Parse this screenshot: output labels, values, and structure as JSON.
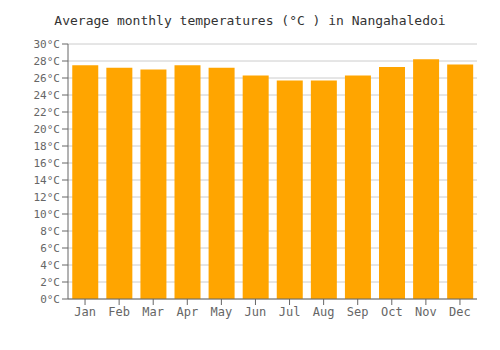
{
  "chart_data": {
    "type": "bar",
    "title": "Average monthly temperatures (°C ) in Nangahaledoi",
    "categories": [
      "Jan",
      "Feb",
      "Mar",
      "Apr",
      "May",
      "Jun",
      "Jul",
      "Aug",
      "Sep",
      "Oct",
      "Nov",
      "Dec"
    ],
    "values": [
      27.5,
      27.2,
      27.0,
      27.5,
      27.2,
      26.3,
      25.7,
      25.7,
      26.3,
      27.3,
      28.2,
      27.6
    ],
    "color": "#FFA500",
    "ylim": [
      0,
      30
    ],
    "yticks": [
      {
        "value": 0,
        "label": "0°C"
      },
      {
        "value": 2,
        "label": "2°C"
      },
      {
        "value": 4,
        "label": "4°C"
      },
      {
        "value": 6,
        "label": "6°C"
      },
      {
        "value": 8,
        "label": "8°C"
      },
      {
        "value": 10,
        "label": "10°C"
      },
      {
        "value": 12,
        "label": "12°C"
      },
      {
        "value": 14,
        "label": "14°C"
      },
      {
        "value": 16,
        "label": "16°C"
      },
      {
        "value": 18,
        "label": "18°C"
      },
      {
        "value": 20,
        "label": "20°C"
      },
      {
        "value": 22,
        "label": "22°C"
      },
      {
        "value": 24,
        "label": "24°C"
      },
      {
        "value": 26,
        "label": "26°C"
      },
      {
        "value": 28,
        "label": "28°C"
      },
      {
        "value": 30,
        "label": "30°C"
      }
    ],
    "grid": true
  }
}
